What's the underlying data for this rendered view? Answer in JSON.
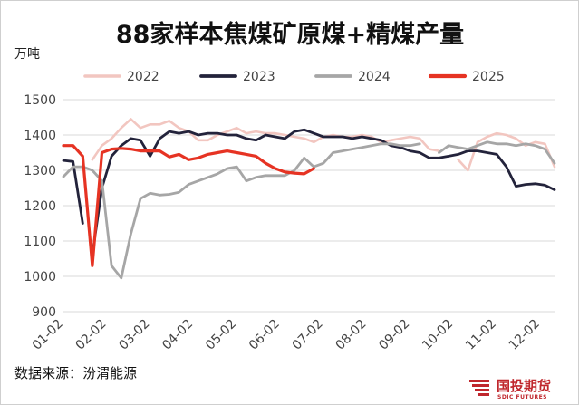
{
  "chart_data": {
    "type": "line",
    "title": "88家样本焦煤矿原煤+精煤产量",
    "unit_label": "万吨",
    "source": "数据来源：汾渭能源",
    "logo": {
      "name": "国投期货",
      "sub": "SDIC FUTURES"
    },
    "ylim": [
      900,
      1500
    ],
    "yticks": [
      "900",
      "1000",
      "1100",
      "1200",
      "1300",
      "1400",
      "1500"
    ],
    "xlim": [
      1,
      52
    ],
    "xticks": [
      {
        "label": "01-02",
        "x": 1
      },
      {
        "label": "02-02",
        "x": 5.5
      },
      {
        "label": "03-02",
        "x": 10
      },
      {
        "label": "04-02",
        "x": 14.5
      },
      {
        "label": "05-02",
        "x": 19
      },
      {
        "label": "06-02",
        "x": 23.5
      },
      {
        "label": "07-02",
        "x": 28
      },
      {
        "label": "08-02",
        "x": 32.5
      },
      {
        "label": "09-02",
        "x": 37
      },
      {
        "label": "10-02",
        "x": 41.5
      },
      {
        "label": "11-02",
        "x": 46
      },
      {
        "label": "12-02",
        "x": 50.5
      }
    ],
    "grid": true,
    "legend_position": "top",
    "series": [
      {
        "name": "2022",
        "color": "#f2c6c0",
        "width": 2.6,
        "segments": [
          [
            [
              4,
              1330
            ],
            [
              5,
              1370
            ],
            [
              6,
              1390
            ],
            [
              7,
              1420
            ],
            [
              8,
              1445
            ],
            [
              9,
              1420
            ],
            [
              10,
              1430
            ],
            [
              11,
              1430
            ],
            [
              12,
              1440
            ],
            [
              13,
              1420
            ],
            [
              14,
              1410
            ],
            [
              15,
              1385
            ],
            [
              16,
              1385
            ],
            [
              17,
              1400
            ],
            [
              18,
              1410
            ],
            [
              19,
              1420
            ],
            [
              20,
              1405
            ],
            [
              21,
              1410
            ],
            [
              22,
              1405
            ],
            [
              23,
              1405
            ],
            [
              24,
              1400
            ],
            [
              25,
              1395
            ],
            [
              26,
              1390
            ],
            [
              27,
              1380
            ],
            [
              28,
              1395
            ],
            [
              29,
              1400
            ],
            [
              30,
              1395
            ],
            [
              31,
              1395
            ],
            [
              32,
              1400
            ],
            [
              33,
              1395
            ],
            [
              34,
              1380
            ],
            [
              35,
              1385
            ],
            [
              36,
              1390
            ],
            [
              37,
              1395
            ],
            [
              38,
              1390
            ],
            [
              39,
              1360
            ],
            [
              40,
              1355
            ]
          ],
          [
            [
              42,
              1330
            ],
            [
              43,
              1300
            ],
            [
              44,
              1380
            ],
            [
              45,
              1395
            ],
            [
              46,
              1405
            ],
            [
              47,
              1400
            ],
            [
              48,
              1390
            ],
            [
              49,
              1370
            ],
            [
              50,
              1380
            ],
            [
              51,
              1375
            ],
            [
              52,
              1310
            ]
          ]
        ]
      },
      {
        "name": "2023",
        "color": "#23233b",
        "width": 2.8,
        "segments": [
          [
            [
              1,
              1328
            ],
            [
              2,
              1325
            ],
            [
              3,
              1150
            ]
          ],
          [
            [
              4,
              1060
            ],
            [
              5,
              1250
            ],
            [
              6,
              1340
            ],
            [
              7,
              1370
            ],
            [
              8,
              1390
            ],
            [
              9,
              1385
            ],
            [
              10,
              1340
            ],
            [
              11,
              1390
            ],
            [
              12,
              1410
            ],
            [
              13,
              1405
            ],
            [
              14,
              1410
            ],
            [
              15,
              1400
            ],
            [
              16,
              1405
            ],
            [
              17,
              1405
            ],
            [
              18,
              1400
            ],
            [
              19,
              1400
            ],
            [
              20,
              1390
            ],
            [
              21,
              1385
            ],
            [
              22,
              1400
            ],
            [
              23,
              1395
            ],
            [
              24,
              1390
            ],
            [
              25,
              1410
            ],
            [
              26,
              1415
            ],
            [
              27,
              1405
            ],
            [
              28,
              1395
            ],
            [
              29,
              1395
            ],
            [
              30,
              1395
            ],
            [
              31,
              1390
            ],
            [
              32,
              1395
            ],
            [
              33,
              1390
            ],
            [
              34,
              1385
            ],
            [
              35,
              1370
            ],
            [
              36,
              1365
            ],
            [
              37,
              1355
            ],
            [
              38,
              1350
            ],
            [
              39,
              1335
            ],
            [
              40,
              1335
            ],
            [
              41,
              1340
            ],
            [
              42,
              1345
            ],
            [
              43,
              1355
            ],
            [
              44,
              1355
            ],
            [
              45,
              1350
            ],
            [
              46,
              1345
            ],
            [
              47,
              1310
            ],
            [
              48,
              1255
            ],
            [
              49,
              1260
            ],
            [
              50,
              1262
            ],
            [
              51,
              1258
            ],
            [
              52,
              1245
            ]
          ]
        ]
      },
      {
        "name": "2024",
        "color": "#a6a6a6",
        "width": 2.8,
        "segments": [
          [
            [
              1,
              1282
            ],
            [
              2,
              1310
            ],
            [
              3,
              1310
            ],
            [
              4,
              1300
            ],
            [
              5,
              1270
            ],
            [
              6,
              1030
            ],
            [
              7,
              995
            ],
            [
              8,
              1120
            ],
            [
              9,
              1220
            ],
            [
              10,
              1235
            ],
            [
              11,
              1230
            ],
            [
              12,
              1232
            ],
            [
              13,
              1238
            ],
            [
              14,
              1260
            ],
            [
              15,
              1270
            ],
            [
              16,
              1280
            ],
            [
              17,
              1290
            ],
            [
              18,
              1305
            ],
            [
              19,
              1310
            ],
            [
              20,
              1270
            ],
            [
              21,
              1280
            ],
            [
              22,
              1285
            ],
            [
              23,
              1285
            ],
            [
              24,
              1285
            ],
            [
              25,
              1300
            ],
            [
              26,
              1335
            ],
            [
              27,
              1310
            ],
            [
              28,
              1320
            ],
            [
              29,
              1350
            ],
            [
              30,
              1355
            ],
            [
              31,
              1360
            ],
            [
              32,
              1365
            ],
            [
              33,
              1370
            ],
            [
              34,
              1375
            ],
            [
              35,
              1375
            ],
            [
              36,
              1370
            ],
            [
              37,
              1370
            ],
            [
              38,
              1375
            ]
          ],
          [
            [
              40,
              1350
            ],
            [
              41,
              1370
            ],
            [
              42,
              1365
            ],
            [
              43,
              1360
            ],
            [
              44,
              1370
            ],
            [
              45,
              1380
            ],
            [
              46,
              1375
            ],
            [
              47,
              1375
            ],
            [
              48,
              1370
            ],
            [
              49,
              1375
            ],
            [
              50,
              1370
            ],
            [
              51,
              1360
            ],
            [
              52,
              1320
            ]
          ]
        ]
      },
      {
        "name": "2025",
        "color": "#e63323",
        "width": 3.2,
        "segments": [
          [
            [
              1,
              1370
            ],
            [
              2,
              1370
            ],
            [
              3,
              1340
            ],
            [
              4,
              1030
            ],
            [
              5,
              1350
            ],
            [
              6,
              1360
            ],
            [
              7,
              1362
            ],
            [
              8,
              1360
            ],
            [
              9,
              1355
            ],
            [
              10,
              1355
            ],
            [
              11,
              1355
            ],
            [
              12,
              1338
            ],
            [
              13,
              1345
            ],
            [
              14,
              1330
            ],
            [
              15,
              1335
            ],
            [
              16,
              1345
            ],
            [
              17,
              1350
            ],
            [
              18,
              1355
            ],
            [
              19,
              1350
            ],
            [
              20,
              1345
            ],
            [
              21,
              1340
            ],
            [
              22,
              1320
            ],
            [
              23,
              1305
            ],
            [
              24,
              1295
            ],
            [
              25,
              1292
            ],
            [
              26,
              1290
            ],
            [
              27,
              1305
            ]
          ]
        ]
      }
    ]
  }
}
